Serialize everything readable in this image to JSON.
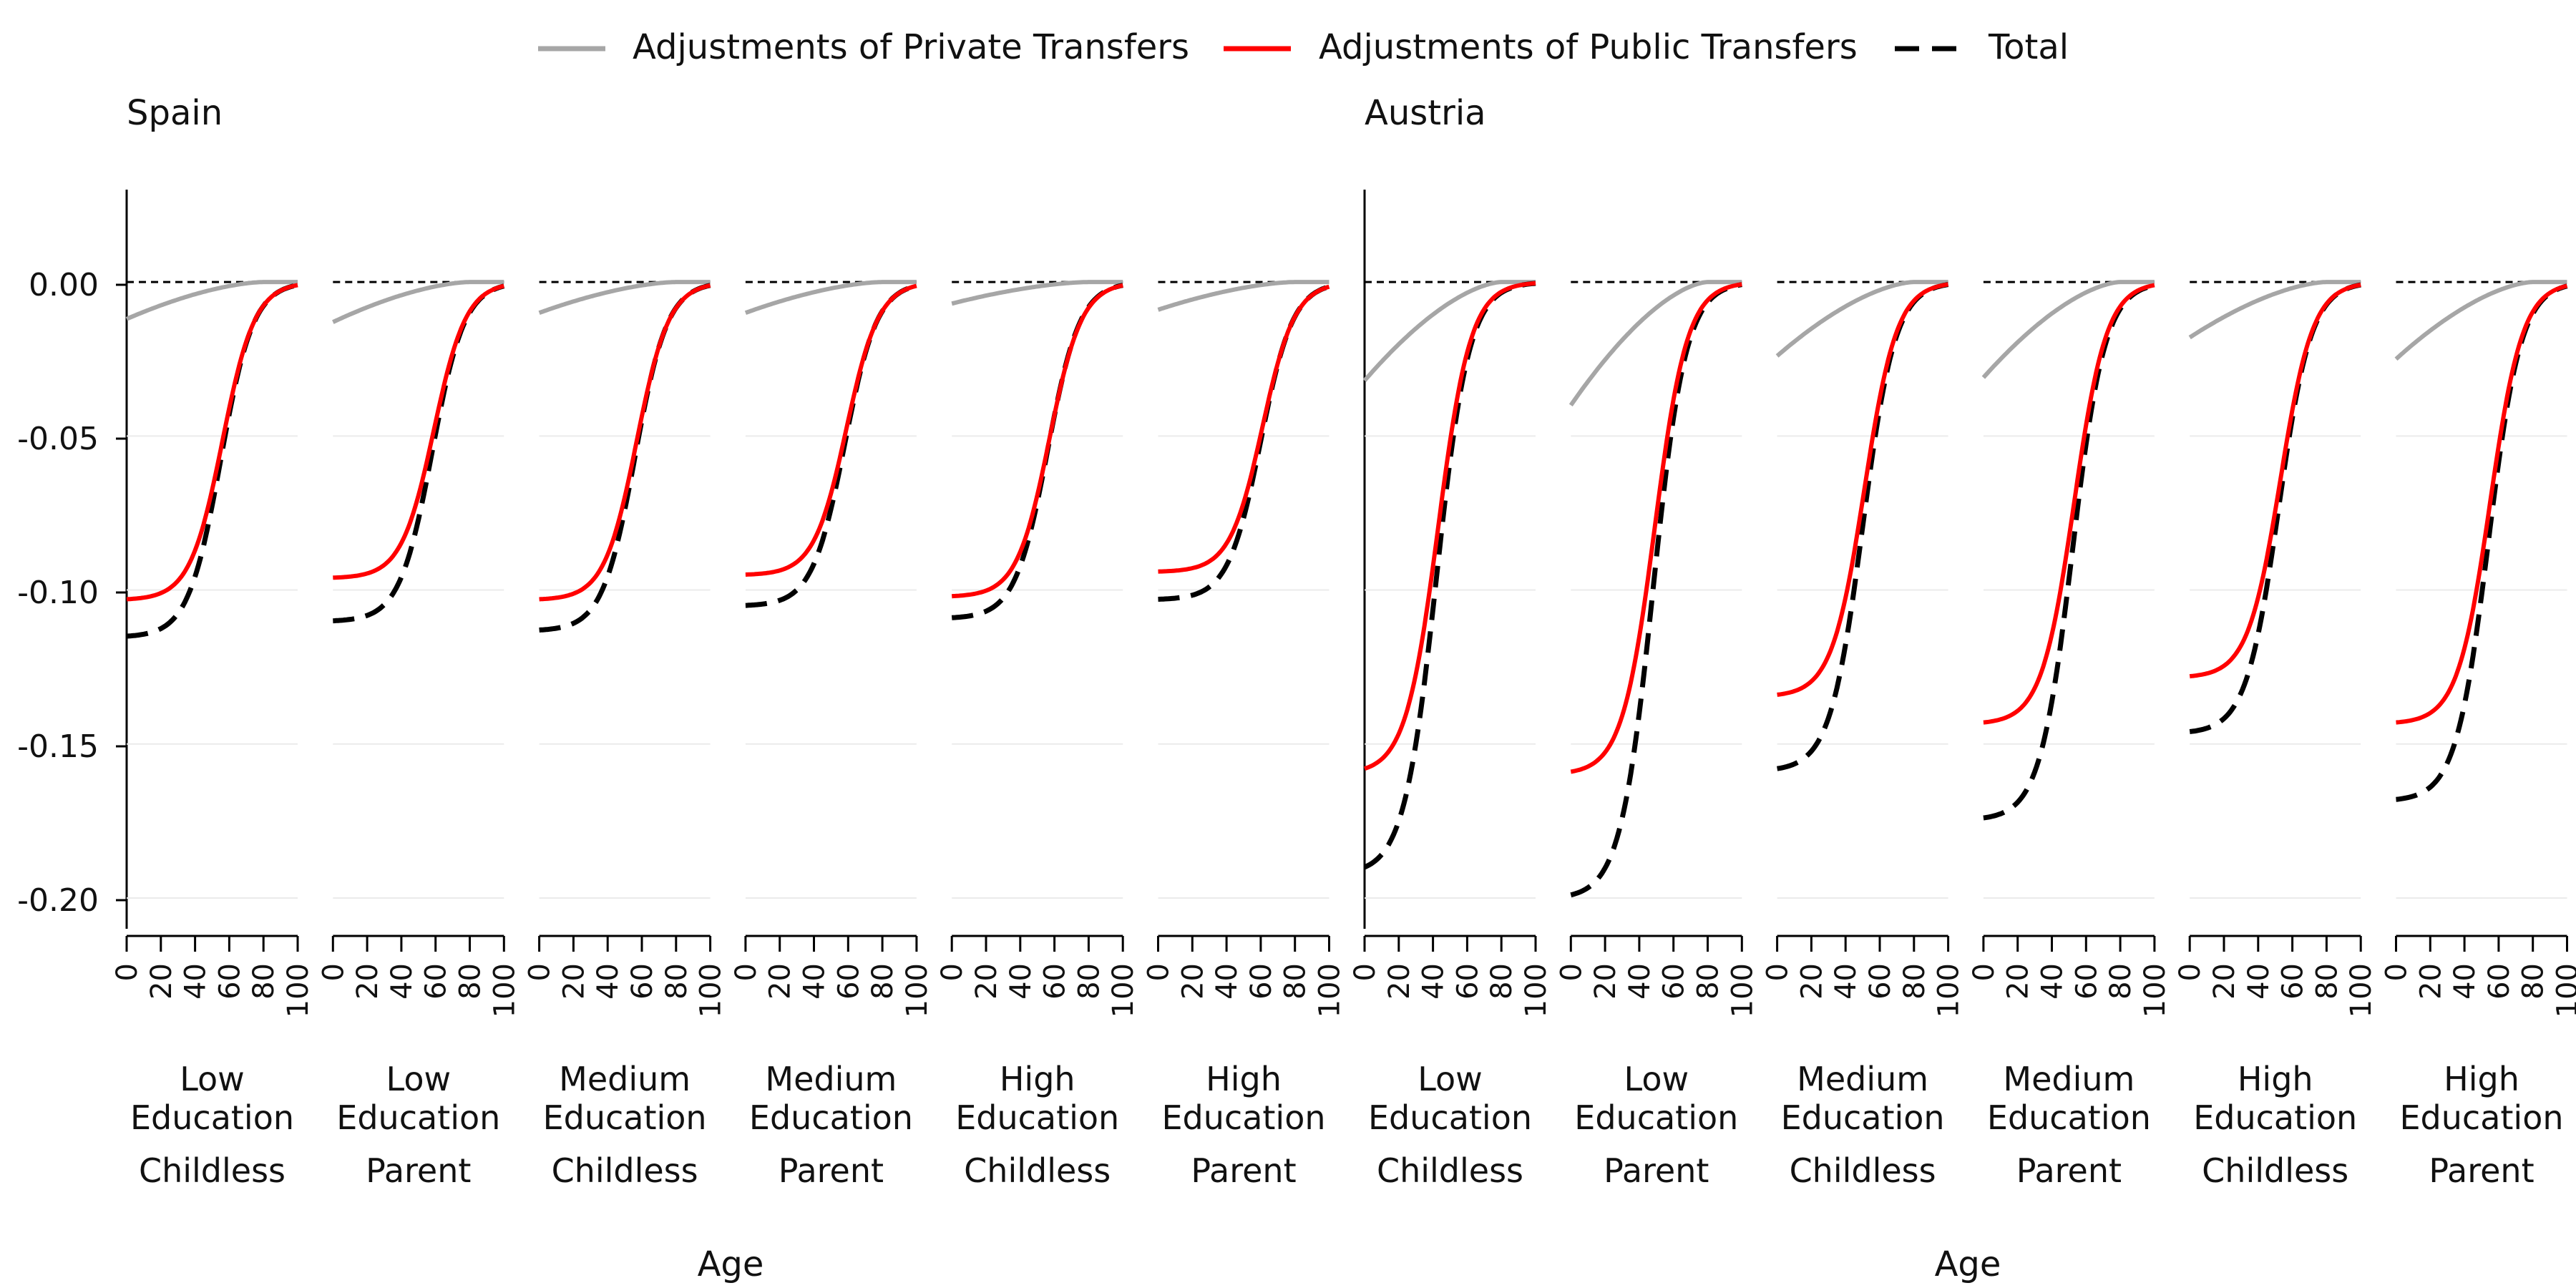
{
  "legend": {
    "position": "top",
    "items": [
      {
        "label": "Adjustments of Private Transfers",
        "style": "solid",
        "color": "#a6a6a6"
      },
      {
        "label": "Adjustments of Public Transfers",
        "style": "solid",
        "color": "#ff0000"
      },
      {
        "label": "Total",
        "style": "dashed",
        "color": "#000000"
      }
    ]
  },
  "colors": {
    "private": "#a6a6a6",
    "public": "#ff0000",
    "total": "#000000",
    "gridline": "#ebebeb",
    "zero_line": "#000000"
  },
  "chart_data": {
    "type": "line",
    "xlabel": "Age",
    "x_ticks": [
      0,
      20,
      40,
      60,
      80,
      100
    ],
    "xlim": [
      0,
      100
    ],
    "y_ticks": [
      0.0,
      -0.05,
      -0.1,
      -0.15,
      -0.2
    ],
    "y_tick_labels": [
      "0.00",
      "-0.05",
      "-0.10",
      "-0.15",
      "-0.20"
    ],
    "ylim": [
      -0.21,
      0.03
    ],
    "grid": "horizontal major lines",
    "reference_line": {
      "y": 0,
      "style": "dashed"
    },
    "panels_layout": "two countries side by side, each with six facets",
    "countries": [
      {
        "name": "Spain",
        "facets": [
          {
            "label": [
              "Low",
              "Education",
              "Childless"
            ],
            "private_start": -0.012,
            "public_start": -0.103,
            "total_start": -0.115,
            "midpoint_age": 55
          },
          {
            "label": [
              "Low",
              "Education",
              "Parent"
            ],
            "private_start": -0.013,
            "public_start": -0.096,
            "total_start": -0.11,
            "midpoint_age": 58
          },
          {
            "label": [
              "Medium",
              "Education",
              "Childless"
            ],
            "private_start": -0.01,
            "public_start": -0.103,
            "total_start": -0.113,
            "midpoint_age": 56
          },
          {
            "label": [
              "Medium",
              "Education",
              "Parent"
            ],
            "private_start": -0.01,
            "public_start": -0.095,
            "total_start": -0.105,
            "midpoint_age": 58
          },
          {
            "label": [
              "High",
              "Education",
              "Childless"
            ],
            "private_start": -0.007,
            "public_start": -0.102,
            "total_start": -0.109,
            "midpoint_age": 56
          },
          {
            "label": [
              "High",
              "Education",
              "Parent"
            ],
            "private_start": -0.009,
            "public_start": -0.094,
            "total_start": -0.103,
            "midpoint_age": 60
          }
        ]
      },
      {
        "name": "Austria",
        "facets": [
          {
            "label": [
              "Low",
              "Education",
              "Childless"
            ],
            "private_start": -0.032,
            "public_start": -0.158,
            "total_start": -0.19,
            "midpoint_age": 42
          },
          {
            "label": [
              "Low",
              "Education",
              "Parent"
            ],
            "private_start": -0.04,
            "public_start": -0.159,
            "total_start": -0.199,
            "midpoint_age": 48
          },
          {
            "label": [
              "Medium",
              "Education",
              "Childless"
            ],
            "private_start": -0.024,
            "public_start": -0.134,
            "total_start": -0.158,
            "midpoint_age": 50
          },
          {
            "label": [
              "Medium",
              "Education",
              "Parent"
            ],
            "private_start": -0.031,
            "public_start": -0.143,
            "total_start": -0.174,
            "midpoint_age": 52
          },
          {
            "label": [
              "High",
              "Education",
              "Childless"
            ],
            "private_start": -0.018,
            "public_start": -0.128,
            "total_start": -0.146,
            "midpoint_age": 52
          },
          {
            "label": [
              "High",
              "Education",
              "Parent"
            ],
            "private_start": -0.025,
            "public_start": -0.143,
            "total_start": -0.168,
            "midpoint_age": 54
          }
        ]
      }
    ]
  }
}
